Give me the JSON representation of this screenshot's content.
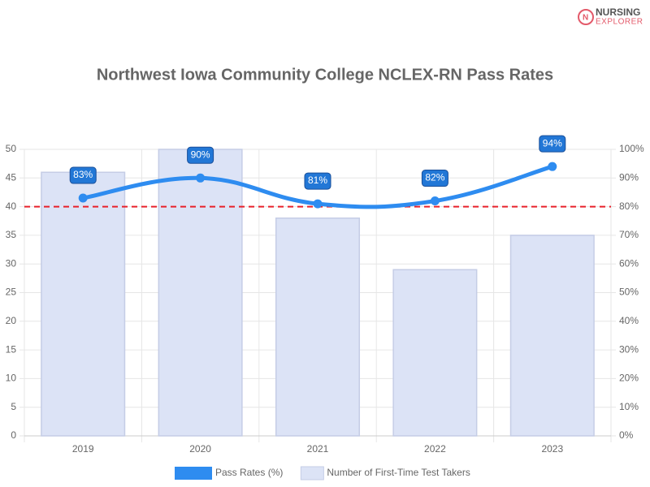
{
  "logo": {
    "line1": "NURSING",
    "line2": "EXPLORER"
  },
  "chart_data": {
    "type": "bar-line",
    "title": "Northwest Iowa Community College NCLEX-RN Pass Rates",
    "categories": [
      "2019",
      "2020",
      "2021",
      "2022",
      "2023"
    ],
    "series": [
      {
        "name": "Pass Rates (%)",
        "type": "line",
        "axis": "y2",
        "color": "#2e8cf0",
        "values": [
          83,
          90,
          81,
          82,
          94
        ],
        "value_labels": [
          "83%",
          "90%",
          "81%",
          "82%",
          "94%"
        ]
      },
      {
        "name": "Number of First-Time Test Takers",
        "type": "bar",
        "axis": "y",
        "color": "#dce3f6",
        "values": [
          46,
          50,
          38,
          29,
          35
        ]
      }
    ],
    "ylim": [
      0,
      50
    ],
    "yticks": [
      0,
      5,
      10,
      15,
      20,
      25,
      30,
      35,
      40,
      45,
      50
    ],
    "y2lim": [
      0,
      100
    ],
    "y2ticks": [
      {
        "value": 0,
        "label": "0%"
      },
      {
        "value": 10,
        "label": "10%"
      },
      {
        "value": 20,
        "label": "20%"
      },
      {
        "value": 30,
        "label": "30%"
      },
      {
        "value": 40,
        "label": "40%"
      },
      {
        "value": 50,
        "label": "50%"
      },
      {
        "value": 60,
        "label": "60%"
      },
      {
        "value": 70,
        "label": "70%"
      },
      {
        "value": 80,
        "label": "80%"
      },
      {
        "value": 90,
        "label": "90%"
      },
      {
        "value": 100,
        "label": "100%"
      }
    ],
    "reference_line": {
      "value": 80,
      "axis": "y2",
      "color": "#e8202a"
    },
    "grid": true,
    "legend": "bottom"
  }
}
